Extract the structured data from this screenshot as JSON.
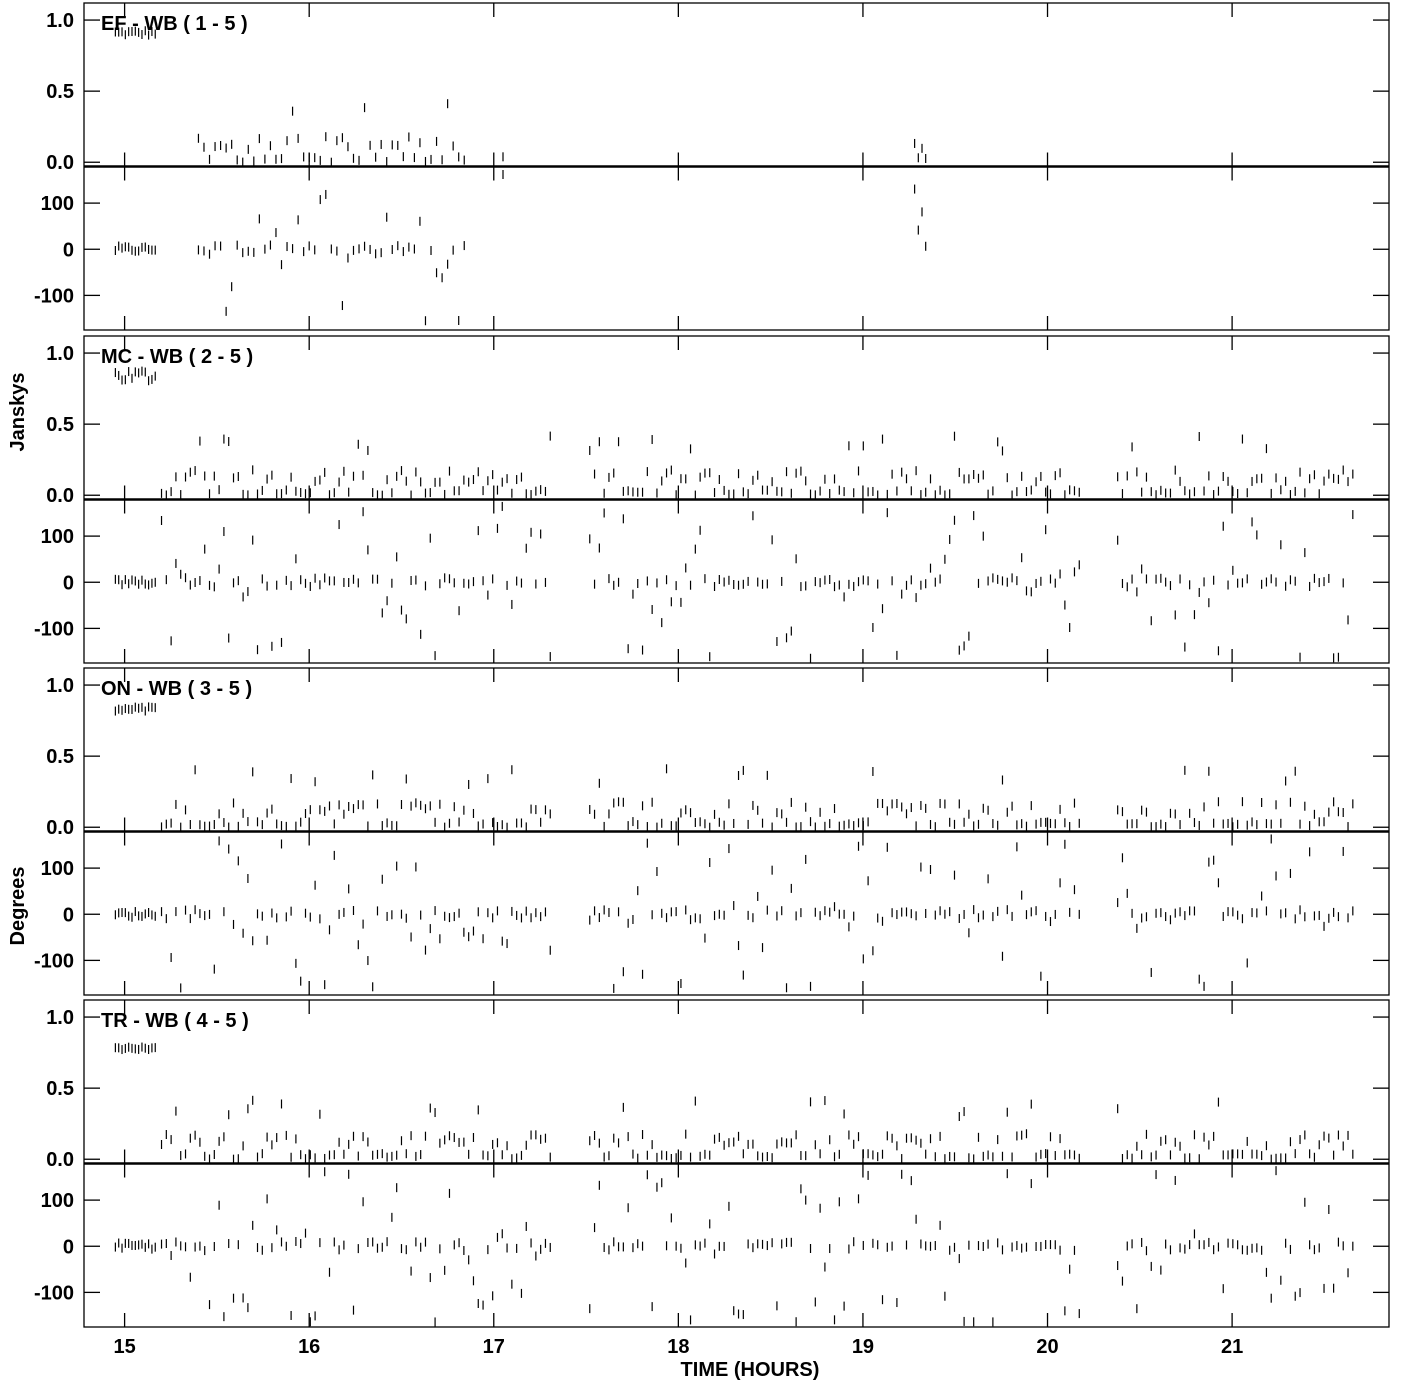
{
  "chart_data": {
    "type": "scatter",
    "description": "VLBI baseline visibility amplitude (Jy) and phase (deg) vs time, four baselines to WB",
    "xlabel": "TIME (HOURS)",
    "xlim": [
      14.78,
      21.85
    ],
    "x_ticks": [
      15,
      16,
      17,
      18,
      19,
      20,
      21
    ],
    "amp_ylabel": "Janskys",
    "phase_ylabel": "Degrees",
    "amp_ylim": [
      -0.03,
      1.12
    ],
    "phase_ylim": [
      -175,
      175
    ],
    "amp_ticks": [
      "1.0",
      "0.5",
      "0.0"
    ],
    "phase_ticks": [
      "100",
      "0",
      "-100"
    ],
    "grid": false,
    "panels": [
      {
        "title": "EF - WB ( 1 - 5 )",
        "segments": [
          {
            "start": 14.95,
            "end": 15.17,
            "step": 0.018,
            "calibrator": true,
            "amp": 0.91,
            "amp_spread": 0.02
          },
          {
            "start": 15.4,
            "end": 16.85,
            "step": 0.03,
            "calibrator": false
          },
          {
            "start": 17.05,
            "end": 17.06,
            "step": 0.03,
            "calibrator": false
          },
          {
            "start": 19.28,
            "end": 19.35,
            "step": 0.02,
            "calibrator": false
          }
        ]
      },
      {
        "title": "MC - WB ( 2 - 5 )",
        "segments": [
          {
            "start": 14.95,
            "end": 15.17,
            "step": 0.018,
            "calibrator": true,
            "amp": 0.84,
            "amp_spread": 0.05
          },
          {
            "start": 15.2,
            "end": 17.32,
            "step": 0.026,
            "calibrator": false
          },
          {
            "start": 17.52,
            "end": 20.18,
            "step": 0.026,
            "calibrator": false
          },
          {
            "start": 20.38,
            "end": 21.67,
            "step": 0.026,
            "calibrator": false
          }
        ]
      },
      {
        "title": "ON - WB ( 3 - 5 )",
        "segments": [
          {
            "start": 14.95,
            "end": 15.17,
            "step": 0.018,
            "calibrator": true,
            "amp": 0.83,
            "amp_spread": 0.02
          },
          {
            "start": 15.2,
            "end": 17.32,
            "step": 0.026,
            "calibrator": false
          },
          {
            "start": 17.52,
            "end": 20.18,
            "step": 0.026,
            "calibrator": false
          },
          {
            "start": 20.38,
            "end": 21.67,
            "step": 0.026,
            "calibrator": false
          }
        ]
      },
      {
        "title": "TR - WB ( 4 - 5 )",
        "segments": [
          {
            "start": 14.95,
            "end": 15.17,
            "step": 0.018,
            "calibrator": true,
            "amp": 0.78,
            "amp_spread": 0.01
          },
          {
            "start": 15.2,
            "end": 17.32,
            "step": 0.026,
            "calibrator": false
          },
          {
            "start": 17.52,
            "end": 20.18,
            "step": 0.026,
            "calibrator": false
          },
          {
            "start": 20.38,
            "end": 21.67,
            "step": 0.026,
            "calibrator": false
          }
        ]
      }
    ]
  }
}
